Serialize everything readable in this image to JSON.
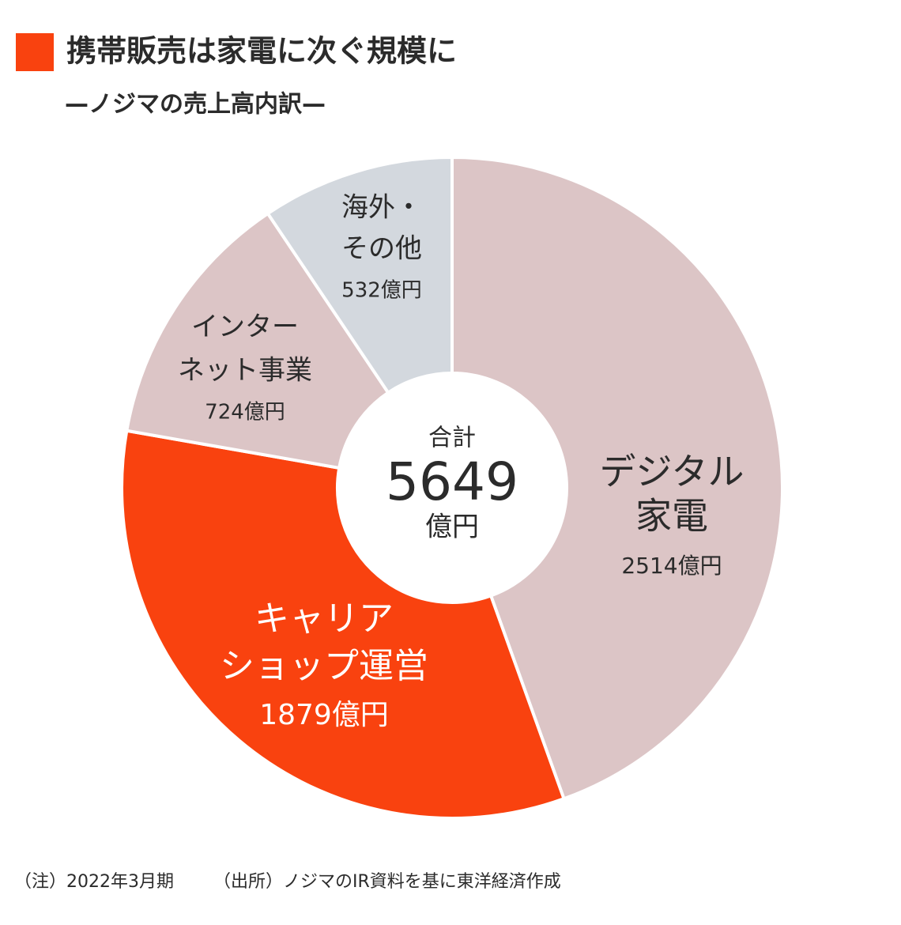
{
  "chart_data": {
    "type": "donut",
    "title": "携帯販売は家電に次ぐ規模に",
    "subtitle": "—ノジマの売上高内訳—",
    "categories": [
      [
        "デジタル",
        "家電"
      ],
      [
        "キャリア",
        "ショップ運営"
      ],
      [
        "インター",
        "ネット事業"
      ],
      [
        "海外・",
        "その他"
      ]
    ],
    "values": [
      2514,
      1879,
      724,
      532
    ],
    "value_labels": [
      "2514億円",
      "1879億円",
      "724億円",
      "532億円"
    ],
    "colors": [
      "#dcc5c6",
      "#f9420f",
      "#dcc5c6",
      "#d3d8de"
    ],
    "center_label": "合計",
    "total": 5649,
    "center_unit": "億円",
    "note": "（注）2022年3月期",
    "source": "（出所）ノジマのIR資料を基に東洋経済作成"
  }
}
